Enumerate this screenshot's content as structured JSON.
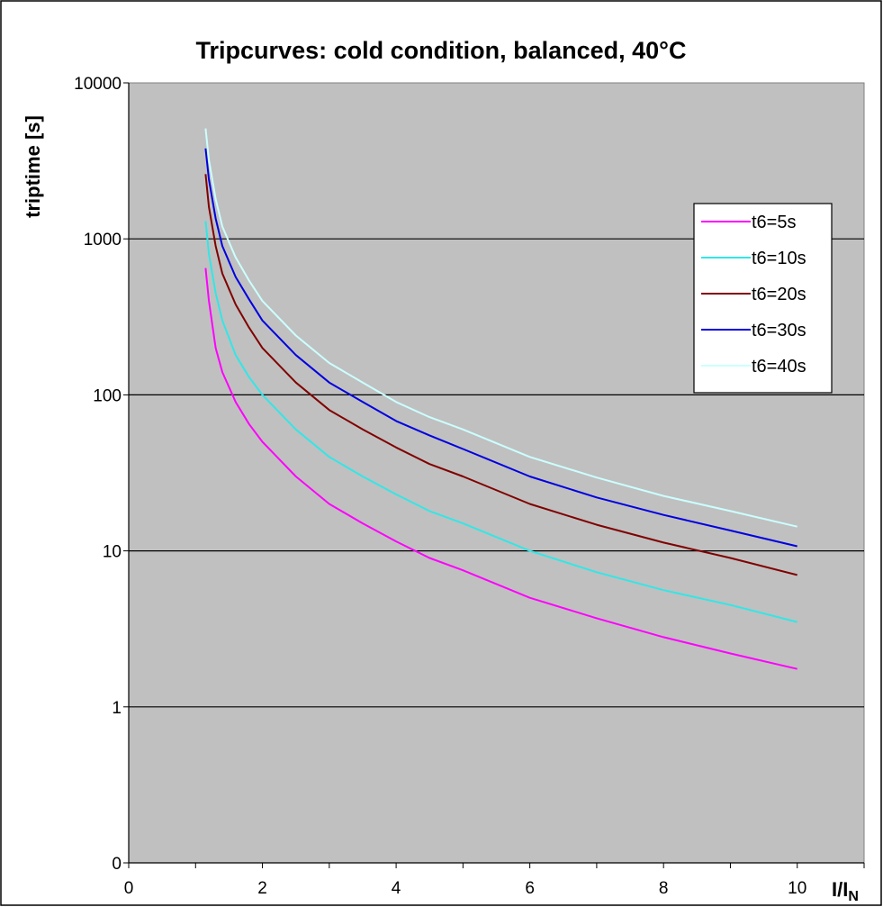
{
  "chart_data": {
    "type": "line",
    "title": "Tripcurves: cold condition, balanced, 40°C",
    "ylabel": "triptime [s]",
    "xlabel_main": "I/I",
    "xlabel_sub": "N",
    "x_range": [
      0,
      11
    ],
    "y_scale": "log",
    "x_ticks": [
      0,
      2,
      4,
      6,
      8,
      10
    ],
    "x_tick_labels": [
      "0",
      "2",
      "4",
      "6",
      "8",
      "10"
    ],
    "y_ticks": [
      0.1,
      1,
      10,
      100,
      1000,
      10000
    ],
    "y_tick_labels": [
      "0",
      "1",
      "10",
      "100",
      "1000",
      "10000"
    ],
    "grid": "horizontal major",
    "legend_position": "right",
    "background_color": "#c0c0c0",
    "series": [
      {
        "name": "t6=5s",
        "color": "#ff00ff",
        "points": [
          [
            1.15,
            650
          ],
          [
            1.2,
            400
          ],
          [
            1.3,
            200
          ],
          [
            1.4,
            140
          ],
          [
            1.6,
            90
          ],
          [
            1.8,
            65
          ],
          [
            2,
            50
          ],
          [
            2.5,
            30
          ],
          [
            3,
            20
          ],
          [
            3.5,
            15
          ],
          [
            4,
            11.5
          ],
          [
            4.5,
            9
          ],
          [
            5,
            7.5
          ],
          [
            6,
            5
          ],
          [
            7,
            3.7
          ],
          [
            8,
            2.8
          ],
          [
            9,
            2.2
          ],
          [
            10,
            1.75
          ]
        ]
      },
      {
        "name": "t6=10s",
        "color": "#33e6e6",
        "points": [
          [
            1.15,
            1300
          ],
          [
            1.2,
            800
          ],
          [
            1.3,
            450
          ],
          [
            1.4,
            300
          ],
          [
            1.6,
            180
          ],
          [
            1.8,
            130
          ],
          [
            2,
            100
          ],
          [
            2.5,
            60
          ],
          [
            3,
            40
          ],
          [
            3.5,
            30
          ],
          [
            4,
            23
          ],
          [
            4.5,
            18
          ],
          [
            5,
            15
          ],
          [
            6,
            10
          ],
          [
            7,
            7.3
          ],
          [
            8,
            5.6
          ],
          [
            9,
            4.5
          ],
          [
            10,
            3.5
          ]
        ]
      },
      {
        "name": "t6=20s",
        "color": "#800000",
        "points": [
          [
            1.15,
            2600
          ],
          [
            1.2,
            1600
          ],
          [
            1.3,
            900
          ],
          [
            1.4,
            600
          ],
          [
            1.6,
            380
          ],
          [
            1.8,
            270
          ],
          [
            2,
            200
          ],
          [
            2.5,
            120
          ],
          [
            3,
            80
          ],
          [
            3.5,
            60
          ],
          [
            4,
            46
          ],
          [
            4.5,
            36
          ],
          [
            5,
            30
          ],
          [
            6,
            20
          ],
          [
            7,
            14.7
          ],
          [
            8,
            11.3
          ],
          [
            9,
            9
          ],
          [
            10,
            7
          ]
        ]
      },
      {
        "name": "t6=30s",
        "color": "#0000e0",
        "points": [
          [
            1.15,
            3800
          ],
          [
            1.2,
            2400
          ],
          [
            1.3,
            1350
          ],
          [
            1.4,
            900
          ],
          [
            1.6,
            570
          ],
          [
            1.8,
            410
          ],
          [
            2,
            300
          ],
          [
            2.5,
            180
          ],
          [
            3,
            120
          ],
          [
            3.5,
            90
          ],
          [
            4,
            68
          ],
          [
            4.5,
            55
          ],
          [
            5,
            45
          ],
          [
            6,
            30
          ],
          [
            7,
            22
          ],
          [
            8,
            17
          ],
          [
            9,
            13.5
          ],
          [
            10,
            10.7
          ]
        ]
      },
      {
        "name": "t6=40s",
        "color": "#ccffff",
        "points": [
          [
            1.15,
            5100
          ],
          [
            1.2,
            3200
          ],
          [
            1.3,
            1800
          ],
          [
            1.4,
            1200
          ],
          [
            1.6,
            760
          ],
          [
            1.8,
            540
          ],
          [
            2,
            400
          ],
          [
            2.5,
            240
          ],
          [
            3,
            160
          ],
          [
            3.5,
            120
          ],
          [
            4,
            90
          ],
          [
            4.5,
            72
          ],
          [
            5,
            60
          ],
          [
            6,
            40
          ],
          [
            7,
            29.5
          ],
          [
            8,
            22.5
          ],
          [
            9,
            18
          ],
          [
            10,
            14.3
          ]
        ]
      }
    ]
  }
}
